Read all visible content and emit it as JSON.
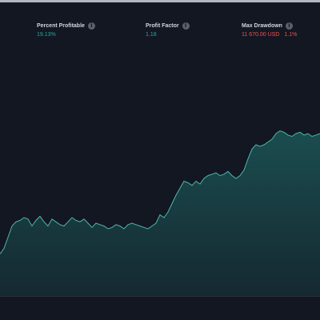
{
  "metrics": [
    {
      "label": "Percent Profitable",
      "value": "19.13%",
      "icon": "info-icon"
    },
    {
      "label": "Profit Factor",
      "value": "1.18",
      "icon": "info-icon"
    },
    {
      "label": "Max Drawdown",
      "value": "11 670.00 USD",
      "value2": "1.1%",
      "icon": "info-icon"
    }
  ],
  "colors": {
    "background": "#131722",
    "positive": "#26a69a",
    "negative": "#ef5350",
    "label": "#d1d4dc"
  },
  "chart_data": {
    "type": "area",
    "x": [
      0,
      1,
      2,
      3,
      4,
      5,
      6,
      7,
      8,
      9,
      10,
      11,
      12,
      13,
      14,
      15,
      16,
      17,
      18,
      19,
      20,
      21,
      22,
      23,
      24,
      25,
      26,
      27,
      28,
      29,
      30,
      31,
      32,
      33,
      34,
      35,
      36,
      37,
      38,
      39,
      40,
      41,
      42,
      43,
      44,
      45,
      46,
      47,
      48,
      49,
      50,
      51,
      52,
      53,
      54,
      55,
      56,
      57,
      58,
      59,
      60,
      61,
      62,
      63,
      64,
      65,
      66,
      67,
      68,
      69,
      70,
      71,
      72,
      73,
      74,
      75,
      76,
      77,
      78,
      79,
      80
    ],
    "series": [
      {
        "values": [
          10,
          14,
          22,
          30,
          33,
          34,
          36,
          35,
          30,
          34,
          37,
          33,
          30,
          35,
          33,
          31,
          30,
          33,
          36,
          34,
          33,
          35,
          32,
          29,
          32,
          31,
          30,
          28,
          29,
          31,
          30,
          28,
          31,
          32,
          31,
          30,
          29,
          28,
          30,
          32,
          38,
          36,
          40,
          46,
          52,
          57,
          62,
          61,
          59,
          62,
          60,
          64,
          66,
          67,
          68,
          66,
          67,
          69,
          66,
          64,
          66,
          70,
          78,
          85,
          88,
          87,
          88,
          90,
          92,
          96,
          98,
          97,
          95,
          94,
          96,
          97,
          95,
          96,
          94,
          95,
          96
        ]
      }
    ],
    "grid": false,
    "legend": "none"
  }
}
